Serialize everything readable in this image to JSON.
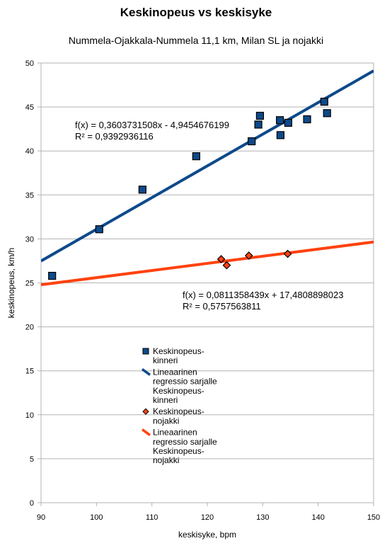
{
  "chart_data": {
    "type": "scatter",
    "title": "Keskinopeus vs keskisyke",
    "subtitle": "Nummela-Ojakkala-Nummela 11,1 km, Milan SL ja nojakki",
    "xlabel": "keskisyke, bpm",
    "ylabel": "keskinopeus, km/h",
    "xlim": [
      90,
      150
    ],
    "ylim": [
      0,
      50
    ],
    "xticks": [
      90,
      100,
      110,
      120,
      130,
      140,
      150
    ],
    "yticks": [
      0,
      5,
      10,
      15,
      20,
      25,
      30,
      35,
      40,
      45,
      50
    ],
    "grid": "horizontal",
    "series": [
      {
        "name": "Keskinopeus-kinneri",
        "marker": "square",
        "color": "#0d4a8a",
        "points": [
          [
            92,
            25.8
          ],
          [
            100.5,
            31.1
          ],
          [
            108.3,
            35.6
          ],
          [
            118,
            39.4
          ],
          [
            128,
            41.1
          ],
          [
            129.2,
            43.0
          ],
          [
            129.5,
            44.0
          ],
          [
            133.1,
            43.5
          ],
          [
            133.2,
            41.8
          ],
          [
            134.6,
            43.2
          ],
          [
            138,
            43.6
          ],
          [
            141.1,
            45.6
          ],
          [
            141.6,
            44.3
          ]
        ]
      },
      {
        "name": "Keskinopeus-nojakki",
        "marker": "diamond",
        "color": "#ff420e",
        "points": [
          [
            122.5,
            27.7
          ],
          [
            123.5,
            27.0
          ],
          [
            127.5,
            28.1
          ],
          [
            134.5,
            28.3
          ]
        ]
      }
    ],
    "trendlines": [
      {
        "name": "Lineaarinen regressio sarjalle Keskinopeus-kinneri",
        "color": "#0d4a8a",
        "slope": 0.3603731508,
        "intercept": -4.9454676199,
        "equation": "f(x) = 0,3603731508x - 4,9454676199",
        "r2": "R² = 0,9392936116"
      },
      {
        "name": "Lineaarinen regressio sarjalle Keskinopeus-nojakki",
        "color": "#ff420e",
        "slope": 0.0811358439,
        "intercept": 17.4808898023,
        "equation": "f(x) = 0,0811358439x + 17,4808898023",
        "r2": "R² = 0,5757563811"
      }
    ],
    "legend": {
      "placement": "center-inside",
      "entries": [
        {
          "label": [
            "Keskinopeus-",
            "kinneri"
          ],
          "kind": "square",
          "color": "#0d4a8a"
        },
        {
          "label": [
            "Lineaarinen",
            "regressio sarjalle",
            "Keskinopeus-",
            "kinneri"
          ],
          "kind": "line",
          "color": "#0d4a8a"
        },
        {
          "label": [
            "Keskinopeus-",
            "nojakki"
          ],
          "kind": "diamond",
          "color": "#ff420e"
        },
        {
          "label": [
            "Lineaarinen",
            "regressio sarjalle",
            "Keskinopeus-",
            "nojakki"
          ],
          "kind": "line",
          "color": "#ff420e"
        }
      ]
    }
  }
}
